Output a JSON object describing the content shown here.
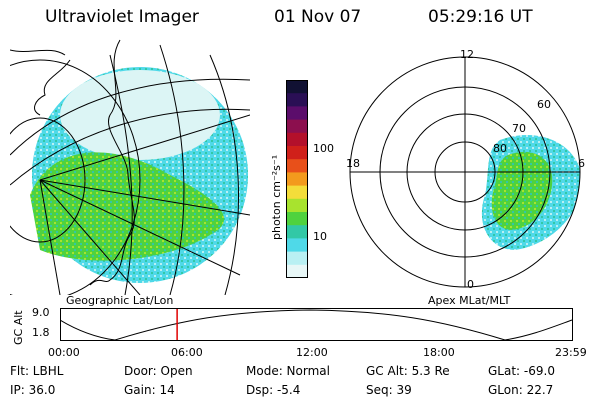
{
  "header": {
    "instrument": "Ultraviolet Imager",
    "date": "01 Nov 07",
    "time": "05:29:16 UT"
  },
  "geo_panel": {
    "caption": "Geographic Lat/Lon"
  },
  "apex_panel": {
    "caption": "Apex MLat/MLT",
    "mlt_labels": {
      "top": "12",
      "left": "18",
      "right": "6",
      "bottom": "0"
    },
    "lat_labels": [
      "60",
      "70",
      "80"
    ]
  },
  "colorbar": {
    "unit_label": "photon cm⁻²s⁻¹",
    "ticks": [
      "100",
      "10"
    ],
    "colors": [
      "#111133",
      "#2a0f55",
      "#5b0d6b",
      "#8c0f4e",
      "#b3102b",
      "#d0201a",
      "#e8501a",
      "#f39a1d",
      "#f4dd3a",
      "#a8e32e",
      "#4fd23e",
      "#32c8a6",
      "#4fd9e8",
      "#b9f0f3",
      "#e8f7f7"
    ]
  },
  "altitude_plot": {
    "ylabel": "GC Alt",
    "ymax": "9.0",
    "ymin": "1.8",
    "xticks": [
      "00:00",
      "06:00",
      "12:00",
      "18:00",
      "23:59"
    ],
    "current_time_hours": 5.49,
    "marker_color": "#e00000"
  },
  "status": {
    "filter": "Flt: LBHL",
    "ip": "IP: 36.0",
    "door": "Door: Open",
    "gain": "Gain: 14",
    "mode": "Mode: Normal",
    "dsp": "Dsp:    -5.4",
    "gc_alt": "GC Alt: 5.3 Re",
    "seq": "Seq: 39",
    "glat": "GLat:   -69.0",
    "glon": "GLon:   22.7"
  }
}
